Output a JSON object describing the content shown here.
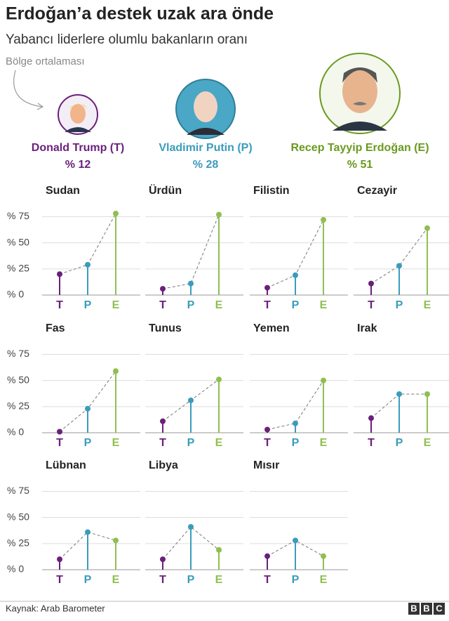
{
  "title": "Erdoğan’a destek uzak ara önde",
  "subtitle": "Yabancı liderlere olumlu bakanların oranı",
  "annotation": "Bölge ortalaması",
  "leaders": {
    "names": [
      "Donald Trump (T)",
      "Vladimir Putin (P)",
      "Recep Tayyip Erdoğan (E)"
    ],
    "values": [
      12,
      28,
      51
    ],
    "value_labels": [
      "% 12",
      "% 28",
      "% 51"
    ],
    "colors": [
      "#6b1f7b",
      "#3a9cbc",
      "#6a9a1f"
    ]
  },
  "chart_data": {
    "type": "lollipop-small-multiples",
    "categories": [
      "T",
      "P",
      "E"
    ],
    "colors": [
      "#6b1f7b",
      "#3a9cbc",
      "#8fbf50"
    ],
    "ylim": [
      0,
      80
    ],
    "yticks": [
      {
        "value": 0,
        "label": "% 0"
      },
      {
        "value": 25,
        "label": "% 25"
      },
      {
        "value": 50,
        "label": "% 50"
      },
      {
        "value": 75,
        "label": "% 75"
      }
    ],
    "grid": true,
    "panels": [
      {
        "title": "Sudan",
        "values": [
          20,
          29,
          78
        ]
      },
      {
        "title": "Ürdün",
        "values": [
          6,
          11,
          77
        ]
      },
      {
        "title": "Filistin",
        "values": [
          7,
          19,
          72
        ]
      },
      {
        "title": "Cezayir",
        "values": [
          11,
          28,
          64
        ]
      },
      {
        "title": "Fas",
        "values": [
          1,
          23,
          59
        ]
      },
      {
        "title": "Tunus",
        "values": [
          11,
          31,
          51
        ]
      },
      {
        "title": "Yemen",
        "values": [
          3,
          9,
          50
        ]
      },
      {
        "title": "Irak",
        "values": [
          14,
          37,
          37
        ]
      },
      {
        "title": "Lübnan",
        "values": [
          10,
          36,
          28
        ]
      },
      {
        "title": "Libya",
        "values": [
          10,
          41,
          19
        ]
      },
      {
        "title": "Mısır",
        "values": [
          13,
          28,
          13
        ]
      }
    ]
  },
  "source": "Kaynak: Arab Barometer",
  "logo": [
    "B",
    "B",
    "C"
  ]
}
